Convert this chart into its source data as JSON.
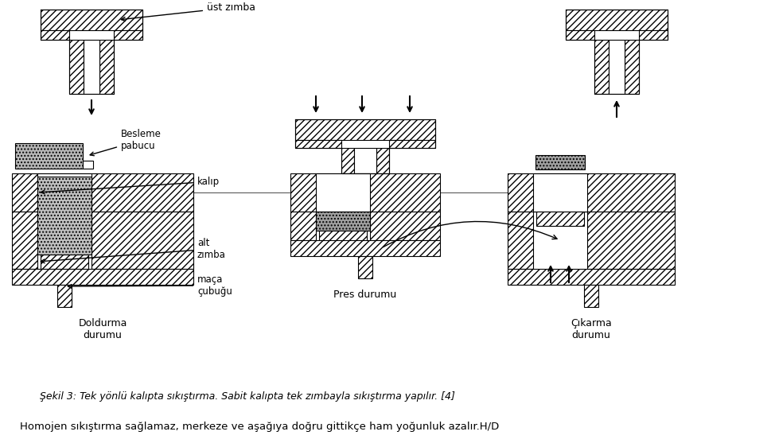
{
  "caption": "Şekil 3: Tek yönlü kalıpta sıkıştırma. Sabit kalıpta tek zımbayla sıkıştırma yapılır. [4]",
  "bottom_text": "Homojen sıkıştırma sağlamaz, merkeze ve aşağıya doğru gittikçe ham yoğunluk azalır.H/D",
  "stage1_label": "Doldurma\ndurumu",
  "stage2_label": "Pres durumu",
  "stage3_label": "Çıkarma\ndurumu",
  "label_ust_zimba": "üst zımba",
  "label_besleme": "Besleme\npabucu",
  "label_kalip": "kalıp",
  "label_alt_zimba": "alt\nzımba",
  "label_maca": "maça\nçubuğu",
  "bg_color": "#ffffff"
}
